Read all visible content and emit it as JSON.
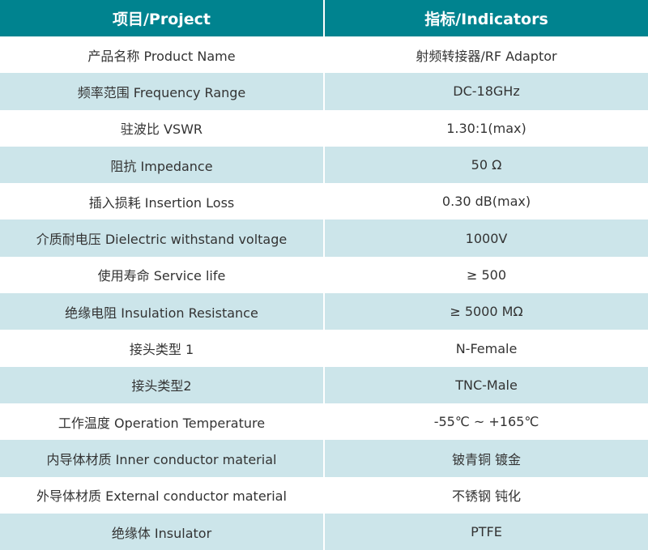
{
  "colors": {
    "header_bg": "#00838f",
    "alt_row_bg": "#cce5ea",
    "header_text": "#ffffff"
  },
  "header": {
    "project": "项目/Project",
    "indicators": "指标/Indicators"
  },
  "rows": [
    {
      "project": "产品名称 Product Name",
      "indicator": "射频转接器/RF Adaptor"
    },
    {
      "project": "频率范围 Frequency Range",
      "indicator": "DC-18GHz"
    },
    {
      "project": "驻波比 VSWR",
      "indicator": "1.30:1(max)"
    },
    {
      "project": "阻抗 Impedance",
      "indicator": "50 Ω"
    },
    {
      "project": "插入损耗 Insertion Loss",
      "indicator": "0.30 dB(max)"
    },
    {
      "project": "介质耐电压 Dielectric withstand voltage",
      "indicator": "1000V"
    },
    {
      "project": "使用寿命 Service life",
      "indicator": "≥ 500"
    },
    {
      "project": "绝缘电阻 Insulation Resistance",
      "indicator": "≥ 5000 MΩ"
    },
    {
      "project": "接头类型 1",
      "indicator": "N-Female"
    },
    {
      "project": "接头类型2",
      "indicator": "TNC-Male"
    },
    {
      "project": "工作温度 Operation Temperature",
      "indicator": "-55℃ ~ +165℃"
    },
    {
      "project": "内导体材质 Inner conductor material",
      "indicator": "铍青铜 镀金"
    },
    {
      "project": "外导体材质 External conductor material",
      "indicator": "不锈钢 钝化"
    },
    {
      "project": "绝缘体 Insulator",
      "indicator": "PTFE"
    }
  ]
}
